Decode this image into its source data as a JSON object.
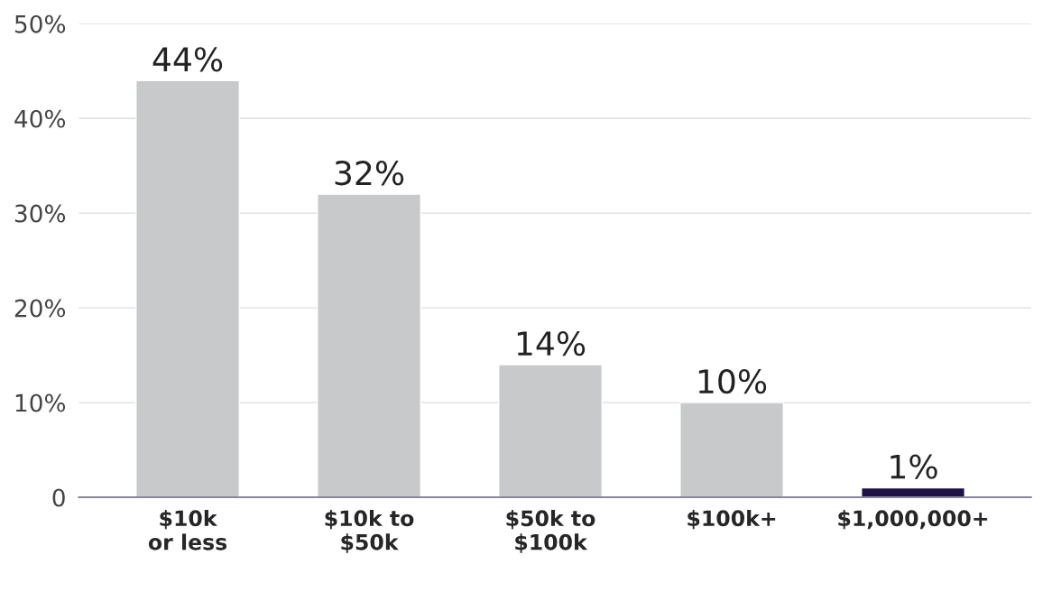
{
  "chart_data": {
    "type": "bar",
    "categories": [
      "$10k\nor less",
      "$10k to\n$50k",
      "$50k to\n$100k",
      "$100k+",
      "$1,000,000+"
    ],
    "values": [
      44,
      32,
      14,
      10,
      1
    ],
    "colors": [
      "#c8c9cb",
      "#c8c9cb",
      "#c8c9cb",
      "#c8c9cb",
      "#1e1248"
    ],
    "value_labels": [
      "44%",
      "32%",
      "14%",
      "10%",
      "1%"
    ],
    "ylim": [
      0,
      50
    ],
    "yticks": [
      0,
      {
        "value": 10,
        "label": "10%"
      },
      {
        "value": 20,
        "label": "20%"
      },
      {
        "value": 30,
        "label": "30%"
      },
      {
        "value": 40,
        "label": "40%"
      },
      {
        "value": 50,
        "label": "50%"
      }
    ],
    "grid": "y"
  }
}
